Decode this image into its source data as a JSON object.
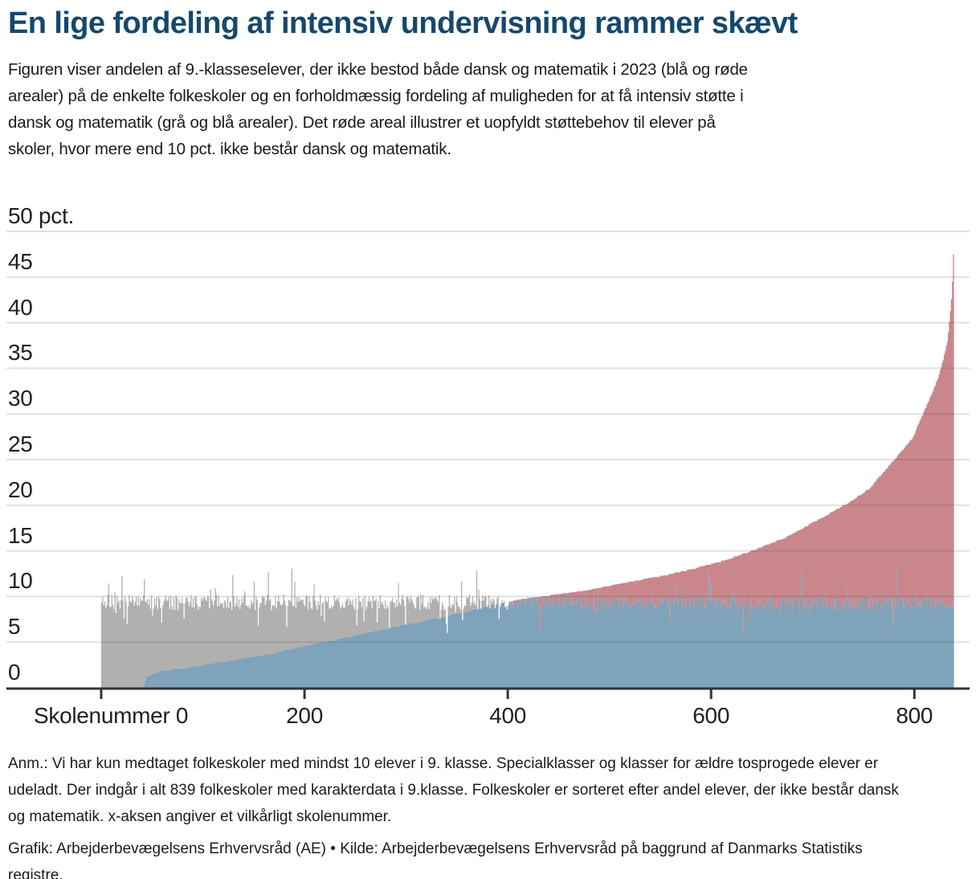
{
  "header": {
    "title": "En lige fordeling af intensiv undervisning rammer skævt",
    "subtitle_lines": [
      "Figuren viser andelen af 9.-klasseselever, der ikke bestod både dansk og matematik i 2023 (blå og røde",
      "arealer) på de enkelte folkeskoler og en forholdmæssig fordeling af muligheden for at få intensiv støtte i",
      "dansk og matematik (grå og blå arealer). Det røde areal illustrer et uopfyldt støttebehov til elever på",
      "skoler, hvor mere end 10 pct. ikke består dansk og matematik."
    ]
  },
  "footnotes": {
    "anm_lines": [
      "Anm.: Vi har kun medtaget folkeskoler med mindst 10 elever i 9. klasse. Specialklasser og klasser for ældre tosprogede elever er",
      "udeladt. Der indgår i alt 839 folkeskoler med karakterdata i 9.klasse. Folkeskoler er sorteret efter andel elever, der ikke består dansk",
      "og matematik. x-aksen angiver et vilkårligt skolenummer."
    ],
    "source_lines": [
      "Grafik: Arbejderbevægelsens Erhvervsråd (AE) • Kilde: Arbejderbevægelsens Erhvervsråd på baggrund af Danmarks Statistiks",
      "registre."
    ]
  },
  "theme": {
    "title_color": "#15486e",
    "text_color": "#1b1b1b",
    "axis_color": "#2c363d",
    "grid_color_rgba": "rgba(70,70,70,0.16)",
    "background": "#ffffff"
  },
  "chart_data": {
    "type": "area",
    "title": "En lige fordeling af intensiv undervisning rammer skævt",
    "n_schools": 839,
    "support_threshold_pct": 10,
    "grid": true,
    "x_axis": {
      "label_prefix": "Skolenummer",
      "range": [
        0,
        839
      ],
      "ticks": [
        {
          "value": 0,
          "label": "Skolenummer 0",
          "align": "left"
        },
        {
          "value": 200,
          "label": "200"
        },
        {
          "value": 400,
          "label": "400"
        },
        {
          "value": 600,
          "label": "600"
        },
        {
          "value": 800,
          "label": "800"
        }
      ]
    },
    "y_axis": {
      "unit": "pct.",
      "range": [
        0,
        50
      ],
      "ticks": [
        {
          "value": 50,
          "label": "50 pct."
        },
        {
          "value": 45,
          "label": "45"
        },
        {
          "value": 40,
          "label": "40"
        },
        {
          "value": 35,
          "label": "35"
        },
        {
          "value": 30,
          "label": "30"
        },
        {
          "value": 25,
          "label": "25"
        },
        {
          "value": 20,
          "label": "20"
        },
        {
          "value": 15,
          "label": "15"
        },
        {
          "value": 10,
          "label": "10"
        },
        {
          "value": 5,
          "label": "5"
        },
        {
          "value": 0,
          "label": "0"
        }
      ]
    },
    "series": [
      {
        "id": "share_failing",
        "name": "Andel elever der ikke bestod dansk og matematik i 2023 (blå og røde arealer)",
        "color_within_support": "#7ea3ba",
        "color_unmet_need": "#c9878c",
        "controls": [
          [
            0,
            0
          ],
          [
            41,
            0
          ],
          [
            44,
            1.15
          ],
          [
            55,
            1.75
          ],
          [
            90,
            2.3
          ],
          [
            130,
            3.0
          ],
          [
            170,
            3.8
          ],
          [
            210,
            4.8
          ],
          [
            250,
            5.7
          ],
          [
            290,
            6.7
          ],
          [
            330,
            7.6
          ],
          [
            365,
            8.5
          ],
          [
            390,
            9.2
          ],
          [
            420,
            9.8
          ],
          [
            455,
            10.3
          ],
          [
            490,
            10.9
          ],
          [
            525,
            11.7
          ],
          [
            555,
            12.3
          ],
          [
            585,
            13.1
          ],
          [
            615,
            14.0
          ],
          [
            645,
            15.2
          ],
          [
            672,
            16.4
          ],
          [
            695,
            17.8
          ],
          [
            715,
            19.0
          ],
          [
            735,
            20.3
          ],
          [
            755,
            21.8
          ],
          [
            772,
            24.0
          ],
          [
            786,
            25.8
          ],
          [
            798,
            27.4
          ],
          [
            808,
            30.0
          ],
          [
            816,
            32.0
          ],
          [
            823,
            34.0
          ],
          [
            828,
            36.0
          ],
          [
            832,
            38.0
          ],
          [
            834,
            40.0
          ],
          [
            836,
            42.5
          ],
          [
            837,
            44.5
          ],
          [
            838,
            47.5
          ],
          [
            839,
            52.8
          ]
        ]
      },
      {
        "id": "support_capacity",
        "name": "Forholdmæssig fordeling af muligheden for intensiv støtte (grå og blå arealer)",
        "color": "#b1b0af",
        "model": {
          "base": 9.35,
          "noise": 0.85,
          "spike_prob": 0.055,
          "dip_prob": 0.055,
          "min": 6.0,
          "max": 13.2,
          "seed": 20233,
          "gray_end_index": 400,
          "red_start_index": 402
        }
      }
    ]
  }
}
